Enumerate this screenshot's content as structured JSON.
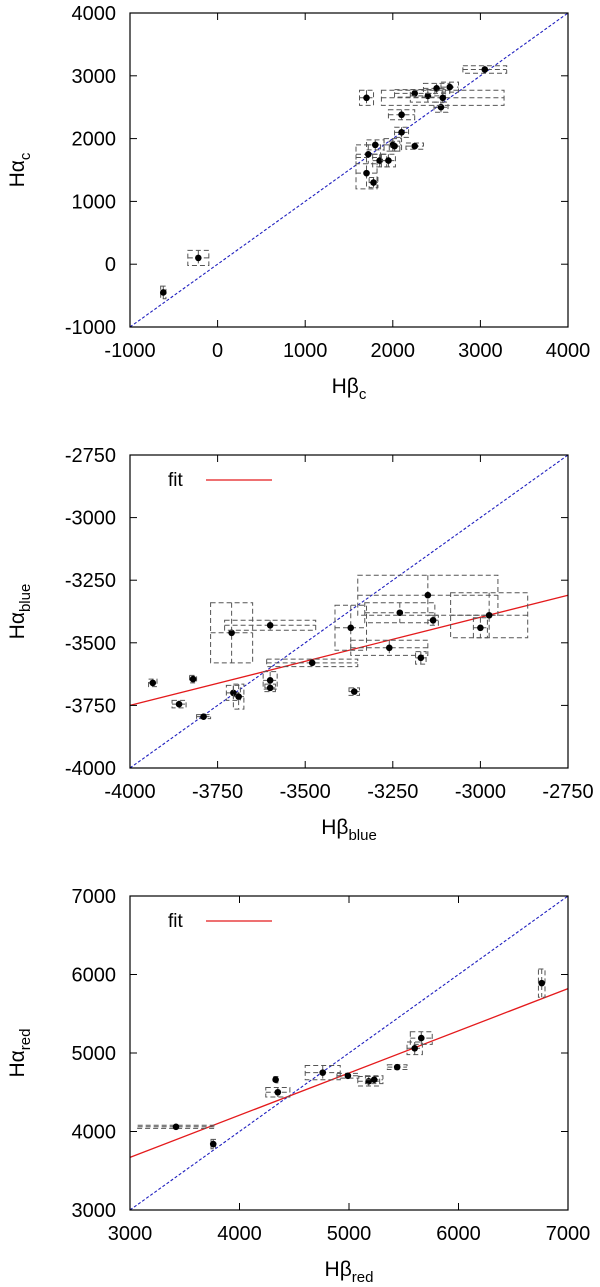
{
  "chart_data": [
    {
      "type": "scatter",
      "xlabel": "Hβ",
      "xlabel_sub": "c",
      "ylabel": "Hα",
      "ylabel_sub": "c",
      "xlim": [
        -1000,
        4000
      ],
      "ylim": [
        -1000,
        4000
      ],
      "xticks": [
        -1000,
        0,
        1000,
        2000,
        3000,
        4000
      ],
      "yticks": [
        -1000,
        0,
        1000,
        2000,
        3000,
        4000
      ],
      "xtick_labels": [
        "-1000",
        "0",
        "1000",
        "2000",
        "3000",
        "4000"
      ],
      "ytick_labels": [
        "-1000",
        "0",
        "1000",
        "2000",
        "3000",
        "4000"
      ],
      "identity_line": true,
      "colors": {
        "points": "#000000",
        "errorbars": "#555555",
        "identity": "#1f1fbf"
      },
      "points": [
        {
          "x": -620,
          "y": -450,
          "xerr": 30,
          "yerr": 100
        },
        {
          "x": -220,
          "y": 100,
          "xerr": 120,
          "yerr": 120
        },
        {
          "x": 1700,
          "y": 2650,
          "xerr": 80,
          "yerr": 120
        },
        {
          "x": 1700,
          "y": 1450,
          "xerr": 120,
          "yerr": 250
        },
        {
          "x": 1720,
          "y": 1750,
          "xerr": 140,
          "yerr": 150
        },
        {
          "x": 1780,
          "y": 1300,
          "xerr": 50,
          "yerr": 80
        },
        {
          "x": 1800,
          "y": 1900,
          "xerr": 100,
          "yerr": 80
        },
        {
          "x": 1850,
          "y": 1650,
          "xerr": 80,
          "yerr": 100
        },
        {
          "x": 1950,
          "y": 1650,
          "xerr": 80,
          "yerr": 100
        },
        {
          "x": 2000,
          "y": 1900,
          "xerr": 100,
          "yerr": 100
        },
        {
          "x": 2020,
          "y": 1880,
          "xerr": 60,
          "yerr": 80
        },
        {
          "x": 2100,
          "y": 2380,
          "xerr": 150,
          "yerr": 80
        },
        {
          "x": 2100,
          "y": 2100,
          "xerr": 80,
          "yerr": 80
        },
        {
          "x": 2250,
          "y": 1880,
          "xerr": 100,
          "yerr": 50
        },
        {
          "x": 2250,
          "y": 2720,
          "xerr": 230,
          "yerr": 60
        },
        {
          "x": 2400,
          "y": 2680,
          "xerr": 200,
          "yerr": 100
        },
        {
          "x": 2500,
          "y": 2800,
          "xerr": 150,
          "yerr": 80
        },
        {
          "x": 2550,
          "y": 2500,
          "xerr": 80,
          "yerr": 80
        },
        {
          "x": 2570,
          "y": 2650,
          "xerr": 700,
          "yerr": 120
        },
        {
          "x": 2650,
          "y": 2820,
          "xerr": 100,
          "yerr": 80
        },
        {
          "x": 3050,
          "y": 3100,
          "xerr": 250,
          "yerr": 60
        }
      ]
    },
    {
      "type": "scatter",
      "xlabel": "Hβ",
      "xlabel_sub": "blue",
      "ylabel": "Hα",
      "ylabel_sub": "blue",
      "xlim": [
        -4000,
        -2750
      ],
      "ylim": [
        -4000,
        -2750
      ],
      "xticks": [
        -4000,
        -3750,
        -3500,
        -3250,
        -3000,
        -2750
      ],
      "yticks": [
        -4000,
        -3750,
        -3500,
        -3250,
        -3000,
        -2750
      ],
      "xtick_labels": [
        "-4000",
        "-3750",
        "-3500",
        "-3250",
        "-3000",
        "-2750"
      ],
      "ytick_labels": [
        "-4000",
        "-3750",
        "-3500",
        "-3250",
        "-3000",
        "-2750"
      ],
      "identity_line": true,
      "legend": {
        "label": "fit",
        "position": "top-left"
      },
      "fit_line": {
        "x": [
          -4000,
          -2750
        ],
        "y": [
          -3750,
          -3310
        ]
      },
      "colors": {
        "points": "#000000",
        "errorbars": "#555555",
        "identity": "#1f1fbf",
        "fit": "#e41a1c"
      },
      "points": [
        {
          "x": -3935,
          "y": -3660,
          "xerr": 12,
          "yerr": 15
        },
        {
          "x": -3860,
          "y": -3745,
          "xerr": 20,
          "yerr": 15
        },
        {
          "x": -3820,
          "y": -3645,
          "xerr": 10,
          "yerr": 15
        },
        {
          "x": -3790,
          "y": -3795,
          "xerr": 20,
          "yerr": 8
        },
        {
          "x": -3710,
          "y": -3460,
          "xerr": 60,
          "yerr": 120
        },
        {
          "x": -3705,
          "y": -3700,
          "xerr": 20,
          "yerr": 30
        },
        {
          "x": -3690,
          "y": -3715,
          "xerr": 15,
          "yerr": 50
        },
        {
          "x": -3600,
          "y": -3430,
          "xerr": 130,
          "yerr": 20
        },
        {
          "x": -3600,
          "y": -3650,
          "xerr": 20,
          "yerr": 35
        },
        {
          "x": -3600,
          "y": -3680,
          "xerr": 15,
          "yerr": 15
        },
        {
          "x": -3480,
          "y": -3580,
          "xerr": 130,
          "yerr": 15
        },
        {
          "x": -3370,
          "y": -3440,
          "xerr": 45,
          "yerr": 90
        },
        {
          "x": -3360,
          "y": -3695,
          "xerr": 15,
          "yerr": 15
        },
        {
          "x": -3260,
          "y": -3520,
          "xerr": 110,
          "yerr": 30
        },
        {
          "x": -3230,
          "y": -3380,
          "xerr": 100,
          "yerr": 40
        },
        {
          "x": -3170,
          "y": -3560,
          "xerr": 15,
          "yerr": 25
        },
        {
          "x": -3150,
          "y": -3310,
          "xerr": 200,
          "yerr": 80
        },
        {
          "x": -3135,
          "y": -3410,
          "xerr": 15,
          "yerr": 20
        },
        {
          "x": -3000,
          "y": -3440,
          "xerr": 20,
          "yerr": 40
        },
        {
          "x": -2975,
          "y": -3390,
          "xerr": 110,
          "yerr": 90
        }
      ]
    },
    {
      "type": "scatter",
      "xlabel": "Hβ",
      "xlabel_sub": "red",
      "ylabel": "Hα",
      "ylabel_sub": "red",
      "xlim": [
        3000,
        7000
      ],
      "ylim": [
        3000,
        7000
      ],
      "xticks": [
        3000,
        4000,
        5000,
        6000,
        7000
      ],
      "yticks": [
        3000,
        4000,
        5000,
        6000,
        7000
      ],
      "xtick_labels": [
        "3000",
        "4000",
        "5000",
        "6000",
        "7000"
      ],
      "ytick_labels": [
        "3000",
        "4000",
        "5000",
        "6000",
        "7000"
      ],
      "identity_line": true,
      "legend": {
        "label": "fit",
        "position": "top-left"
      },
      "fit_line": {
        "x": [
          3000,
          7000
        ],
        "y": [
          3670,
          5820
        ]
      },
      "colors": {
        "points": "#000000",
        "errorbars": "#555555",
        "identity": "#1f1fbf",
        "fit": "#e41a1c"
      },
      "points": [
        {
          "x": 3420,
          "y": 4060,
          "xerr": 350,
          "yerr": 20
        },
        {
          "x": 3760,
          "y": 3840,
          "xerr": 20,
          "yerr": 60
        },
        {
          "x": 4330,
          "y": 4660,
          "xerr": 20,
          "yerr": 40
        },
        {
          "x": 4350,
          "y": 4500,
          "xerr": 110,
          "yerr": 60
        },
        {
          "x": 4760,
          "y": 4750,
          "xerr": 160,
          "yerr": 90
        },
        {
          "x": 4990,
          "y": 4710,
          "xerr": 100,
          "yerr": 30
        },
        {
          "x": 5180,
          "y": 4640,
          "xerr": 100,
          "yerr": 60
        },
        {
          "x": 5230,
          "y": 4660,
          "xerr": 80,
          "yerr": 50
        },
        {
          "x": 5440,
          "y": 4820,
          "xerr": 90,
          "yerr": 30
        },
        {
          "x": 5600,
          "y": 5060,
          "xerr": 70,
          "yerr": 80
        },
        {
          "x": 5660,
          "y": 5190,
          "xerr": 100,
          "yerr": 80
        },
        {
          "x": 6760,
          "y": 5890,
          "xerr": 30,
          "yerr": 180
        }
      ]
    }
  ]
}
